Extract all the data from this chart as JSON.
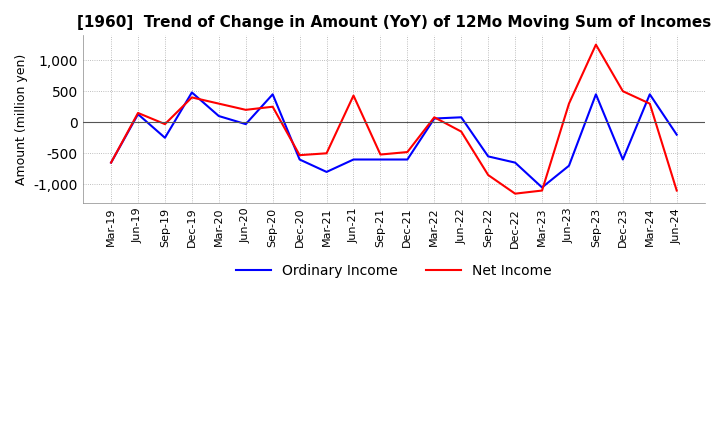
{
  "title": "[1960]  Trend of Change in Amount (YoY) of 12Mo Moving Sum of Incomes",
  "ylabel": "Amount (million yen)",
  "ylim": [
    -1300,
    1400
  ],
  "yticks": [
    -1000,
    -500,
    0,
    500,
    1000
  ],
  "x_labels": [
    "Mar-19",
    "Jun-19",
    "Sep-19",
    "Dec-19",
    "Mar-20",
    "Jun-20",
    "Sep-20",
    "Dec-20",
    "Mar-21",
    "Jun-21",
    "Sep-21",
    "Dec-21",
    "Mar-22",
    "Jun-22",
    "Sep-22",
    "Dec-22",
    "Mar-23",
    "Jun-23",
    "Sep-23",
    "Dec-23",
    "Mar-24",
    "Jun-24"
  ],
  "ordinary_income": [
    -650,
    130,
    -250,
    480,
    100,
    -30,
    450,
    -600,
    -800,
    -600,
    -600,
    -600,
    60,
    80,
    -550,
    -650,
    -1050,
    -700,
    450,
    -600,
    450,
    -200
  ],
  "net_income": [
    -650,
    150,
    -30,
    400,
    300,
    200,
    250,
    -530,
    -500,
    430,
    -520,
    -480,
    80,
    -150,
    -850,
    -1150,
    -1100,
    300,
    1250,
    500,
    300,
    -1100
  ],
  "ordinary_color": "#0000ff",
  "net_color": "#ff0000",
  "line_width": 1.5,
  "title_fontsize": 11,
  "legend_fontsize": 10,
  "grid_color": "#aaaaaa",
  "grid_style": "dotted",
  "background_color": "#ffffff"
}
